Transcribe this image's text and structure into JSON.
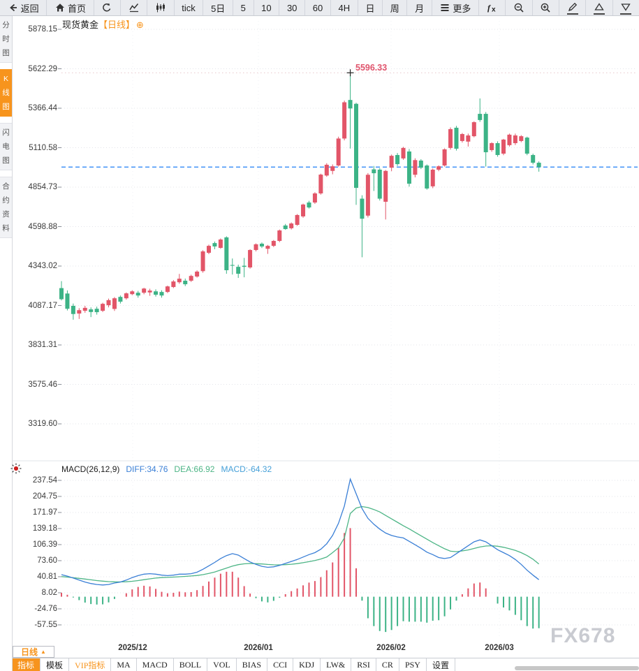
{
  "ui": {
    "title": "现货黄金",
    "period_tag": "【日线】",
    "add_symbol": "⊕",
    "high_label": "5596.33",
    "watermark": "FX678",
    "period": {
      "label": "日线",
      "arrow": "▲"
    },
    "macd_header": {
      "name": "MACD(26,12,9)",
      "diff": "DIFF:34.76",
      "dea": "DEA:66.92",
      "macd": "MACD:-64.32"
    }
  },
  "toolbar": {
    "items": [
      {
        "name": "back-button",
        "icon": "back-arrow-icon",
        "label": "返回"
      },
      {
        "name": "home-button",
        "icon": "home-icon",
        "label": "首页"
      },
      {
        "name": "refresh-button",
        "icon": "refresh-icon"
      },
      {
        "name": "line-chart-button",
        "icon": "line-chart-icon"
      },
      {
        "name": "candlestick-chart-button",
        "icon": "candlestick-icon"
      },
      {
        "name": "tick-button",
        "label": "tick"
      },
      {
        "name": "period-5d-button",
        "label": "5日"
      },
      {
        "name": "period-5m-button",
        "label": "5"
      },
      {
        "name": "period-10m-button",
        "label": "10"
      },
      {
        "name": "period-30m-button",
        "label": "30"
      },
      {
        "name": "period-60m-button",
        "label": "60"
      },
      {
        "name": "period-4h-button",
        "label": "4H"
      },
      {
        "name": "period-day-button",
        "label": "日"
      },
      {
        "name": "period-week-button",
        "label": "周"
      },
      {
        "name": "period-month-button",
        "label": "月"
      },
      {
        "name": "more-button",
        "icon": "menu-icon",
        "label": "更多"
      },
      {
        "name": "indicator-fx-button",
        "icon": "fx-icon"
      },
      {
        "name": "zoom-out-button",
        "icon": "zoom-out-icon"
      },
      {
        "name": "zoom-in-button",
        "icon": "zoom-in-icon"
      },
      {
        "name": "draw-button",
        "icon": "pencil-icon",
        "underline": true
      },
      {
        "name": "collapse-up-button",
        "icon": "triangle-up-icon",
        "underline": true
      },
      {
        "name": "expand-down-button",
        "icon": "triangle-down-icon",
        "underline": true
      }
    ]
  },
  "sidebar": {
    "items": [
      {
        "label": "分时图",
        "active": false
      },
      {
        "label": "K线图",
        "active": true
      },
      {
        "label": "闪电图",
        "active": false
      },
      {
        "label": "合约资料",
        "active": false
      }
    ]
  },
  "bottom_tabs": [
    {
      "label": "指标",
      "style": "active"
    },
    {
      "label": "模板",
      "style": ""
    },
    {
      "label": "VIP指标",
      "style": "vip"
    },
    {
      "label": "MA",
      "style": ""
    },
    {
      "label": "MACD",
      "style": ""
    },
    {
      "label": "BOLL",
      "style": ""
    },
    {
      "label": "VOL",
      "style": ""
    },
    {
      "label": "BIAS",
      "style": ""
    },
    {
      "label": "CCI",
      "style": ""
    },
    {
      "label": "KDJ",
      "style": ""
    },
    {
      "label": "LW&",
      "style": ""
    },
    {
      "label": "RSI",
      "style": ""
    },
    {
      "label": "CR",
      "style": ""
    },
    {
      "label": "PSY",
      "style": ""
    },
    {
      "label": "设置",
      "style": ""
    }
  ],
  "colors": {
    "up_red": "#e25568",
    "down_green": "#3cb386",
    "diff_line": "#3a7fd6",
    "dea_line": "#4db586",
    "macd_value_text": "#46a0d8",
    "accent_orange": "#f7941d",
    "dashed_price_line": "#1f7ff5",
    "annotation_red": "#e0546c",
    "watermark_gray": "#c9cbd1"
  },
  "chart_data": [
    {
      "type": "candlestick",
      "title": "现货黄金【日线】",
      "y_ticks": [
        "5878.15",
        "5622.29",
        "5366.44",
        "5110.58",
        "4854.73",
        "4598.88",
        "4343.02",
        "4087.17",
        "3831.31",
        "3575.46",
        "3319.60"
      ],
      "x_ticks": [
        "2025/12",
        "2026/01",
        "2026/02",
        "2026/03"
      ],
      "ylim": [
        3319.6,
        5878.15
      ],
      "grid": "dotted-horizontal",
      "high_annotation": 5596.33,
      "last_price_dashed": 4985,
      "ohlc": [
        [
          4200,
          4245,
          4120,
          4128
        ],
        [
          4165,
          4185,
          4055,
          4066
        ],
        [
          4085,
          4100,
          3995,
          4032
        ],
        [
          4035,
          4070,
          4000,
          4057
        ],
        [
          4053,
          4085,
          4040,
          4072
        ],
        [
          4062,
          4075,
          4012,
          4045
        ],
        [
          4066,
          4080,
          4028,
          4044
        ],
        [
          4053,
          4105,
          4045,
          4098
        ],
        [
          4089,
          4132,
          4075,
          4122
        ],
        [
          4065,
          4142,
          4052,
          4134
        ],
        [
          4143,
          4152,
          4100,
          4112
        ],
        [
          4134,
          4172,
          4125,
          4166
        ],
        [
          4161,
          4186,
          4154,
          4179
        ],
        [
          4170,
          4182,
          4138,
          4152
        ],
        [
          4170,
          4202,
          4160,
          4197
        ],
        [
          4172,
          4196,
          4150,
          4184
        ],
        [
          4179,
          4192,
          4145,
          4157
        ],
        [
          4175,
          4186,
          4138,
          4152
        ],
        [
          4175,
          4216,
          4168,
          4211
        ],
        [
          4207,
          4252,
          4200,
          4243
        ],
        [
          4238,
          4292,
          4228,
          4261
        ],
        [
          4248,
          4262,
          4213,
          4225
        ],
        [
          4248,
          4287,
          4240,
          4279
        ],
        [
          4275,
          4315,
          4268,
          4307
        ],
        [
          4310,
          4446,
          4300,
          4438
        ],
        [
          4429,
          4482,
          4420,
          4474
        ],
        [
          4492,
          4502,
          4452,
          4470
        ],
        [
          4461,
          4522,
          4455,
          4515
        ],
        [
          4529,
          4536,
          4293,
          4316
        ],
        [
          4350,
          4392,
          4288,
          4345
        ],
        [
          4338,
          4352,
          4266,
          4293
        ],
        [
          4345,
          4396,
          4270,
          4338
        ],
        [
          4334,
          4452,
          4326,
          4447
        ],
        [
          4447,
          4490,
          4438,
          4484
        ],
        [
          4488,
          4496,
          4460,
          4470
        ],
        [
          4455,
          4480,
          4422,
          4474
        ],
        [
          4474,
          4512,
          4466,
          4506
        ],
        [
          4506,
          4580,
          4498,
          4574
        ],
        [
          4606,
          4616,
          4578,
          4583
        ],
        [
          4588,
          4626,
          4580,
          4619
        ],
        [
          4610,
          4680,
          4604,
          4674
        ],
        [
          4665,
          4748,
          4656,
          4742
        ],
        [
          4755,
          4766,
          4716,
          4723
        ],
        [
          4755,
          4822,
          4746,
          4814
        ],
        [
          4814,
          4942,
          4806,
          4936
        ],
        [
          4930,
          5010,
          4922,
          5000
        ],
        [
          4960,
          5002,
          4938,
          4990
        ],
        [
          4995,
          5182,
          4988,
          5170
        ],
        [
          5170,
          5416,
          5158,
          5405
        ],
        [
          5420,
          5596.33,
          5105,
          5365
        ],
        [
          5395,
          5402,
          4740,
          4850
        ],
        [
          4780,
          4802,
          4400,
          4650
        ],
        [
          4670,
          4946,
          4658,
          4935
        ],
        [
          4970,
          4992,
          4830,
          4945
        ],
        [
          4968,
          4978,
          4768,
          4780
        ],
        [
          4760,
          4966,
          4645,
          4960
        ],
        [
          4981,
          5066,
          4958,
          5058
        ],
        [
          5063,
          5076,
          4992,
          5004
        ],
        [
          5041,
          5116,
          5032,
          5109
        ],
        [
          5086,
          5102,
          4858,
          4877
        ],
        [
          4935,
          5042,
          4918,
          5030
        ],
        [
          5027,
          5036,
          4972,
          4981
        ],
        [
          4995,
          5002,
          4838,
          4846
        ],
        [
          4860,
          4976,
          4848,
          4968
        ],
        [
          4968,
          4996,
          4958,
          4990
        ],
        [
          4995,
          5106,
          4988,
          5100
        ],
        [
          5109,
          5242,
          5098,
          5231
        ],
        [
          5240,
          5252,
          5092,
          5104
        ],
        [
          5154,
          5206,
          5144,
          5199
        ],
        [
          5150,
          5202,
          5118,
          5190
        ],
        [
          5185,
          5282,
          5178,
          5276
        ],
        [
          5330,
          5430,
          5278,
          5290
        ],
        [
          5330,
          5342,
          4988,
          5081
        ],
        [
          5095,
          5146,
          5084,
          5140
        ],
        [
          5140,
          5152,
          5052,
          5063
        ],
        [
          5072,
          5168,
          5062,
          5163
        ],
        [
          5127,
          5202,
          5118,
          5195
        ],
        [
          5140,
          5202,
          5128,
          5190
        ],
        [
          5154,
          5192,
          5146,
          5185
        ],
        [
          5176,
          5182,
          5062,
          5072
        ],
        [
          5063,
          5072,
          5002,
          5013
        ],
        [
          5013,
          5022,
          4955,
          4985
        ]
      ]
    },
    {
      "type": "bar+line",
      "title": "MACD(26,12,9)",
      "legend": [
        "DIFF",
        "DEA",
        "MACD"
      ],
      "values": {
        "DIFF": 34.76,
        "DEA": 66.92,
        "MACD": -64.32
      },
      "y_ticks": [
        "237.54",
        "204.75",
        "171.97",
        "139.18",
        "106.39",
        "73.60",
        "40.81",
        "8.02",
        "-24.76",
        "-57.55"
      ],
      "histogram_rule": "2*(diff-dea), red when positive, green when negative",
      "diff": [
        45,
        42,
        38,
        34,
        30,
        27,
        25,
        24,
        25,
        28,
        30,
        34,
        39,
        43,
        46,
        47,
        46,
        44,
        43,
        44,
        46,
        46,
        47,
        50,
        56,
        63,
        70,
        78,
        84,
        88,
        85,
        78,
        71,
        66,
        62,
        60,
        61,
        64,
        68,
        72,
        76,
        81,
        86,
        90,
        97,
        108,
        125,
        150,
        185,
        240,
        210,
        180,
        160,
        148,
        138,
        130,
        125,
        122,
        120,
        113,
        106,
        99,
        91,
        86,
        80,
        78,
        80,
        88,
        96,
        104,
        112,
        116,
        112,
        104,
        96,
        90,
        84,
        76,
        66,
        54,
        44,
        34.76
      ],
      "dea": [
        41,
        40,
        38.8,
        37.5,
        36,
        34.5,
        33,
        31.8,
        30.8,
        30.3,
        30.2,
        30.5,
        31.5,
        33,
        34.8,
        36.5,
        38,
        39,
        39.5,
        40,
        40.8,
        41.5,
        42.3,
        43.3,
        45,
        47.5,
        50.5,
        54.5,
        58.5,
        62.5,
        65.5,
        67.2,
        67.8,
        67.5,
        66.8,
        65.8,
        65.2,
        65,
        65.4,
        66.3,
        67.6,
        69.4,
        71.6,
        74,
        77,
        81,
        90,
        100,
        120,
        170,
        181,
        184,
        182,
        178,
        173,
        166,
        159,
        152,
        145,
        138.5,
        131.5,
        124.5,
        117.5,
        110.5,
        104,
        98,
        93,
        92,
        93.5,
        95.5,
        98.5,
        101.5,
        103.5,
        104,
        103,
        101,
        98,
        94.5,
        90,
        84,
        76.5,
        66.92
      ]
    }
  ]
}
